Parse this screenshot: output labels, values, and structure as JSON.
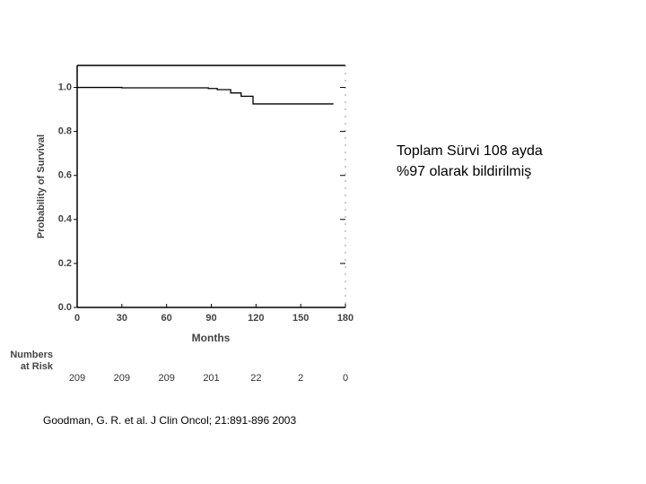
{
  "chart_data": {
    "type": "line",
    "step": true,
    "ylabel": "Probability of Survival",
    "xlabel": "Months",
    "x": [
      0,
      30,
      88,
      94,
      103,
      110,
      118,
      172
    ],
    "values": [
      1.0,
      0.998,
      0.995,
      0.99,
      0.975,
      0.96,
      0.925,
      0.925
    ],
    "color": "#000000",
    "xlim": [
      0,
      180
    ],
    "xticks": [
      0,
      30,
      60,
      90,
      120,
      150,
      180
    ],
    "ylim": [
      0,
      1.1
    ],
    "yticks": [
      {
        "value": 0,
        "label": "0.0"
      },
      {
        "value": 0.2,
        "label": "0.2"
      },
      {
        "value": 0.4,
        "label": "0.4"
      },
      {
        "value": 0.6,
        "label": "0.6"
      },
      {
        "value": 0.8,
        "label": "0.8"
      },
      {
        "value": 1,
        "label": "1.0"
      }
    ],
    "grid": false,
    "at_risk_label": [
      "Numbers",
      "at Risk"
    ],
    "at_risk": [
      209,
      209,
      209,
      201,
      22,
      2,
      0
    ],
    "annotation": [
      "Toplam Sürvi 108 ayda",
      "%97 olarak bildirilmiş"
    ],
    "citation": "Goodman, G. R. et al. J Clin Oncol; 21:891-896 2003"
  }
}
